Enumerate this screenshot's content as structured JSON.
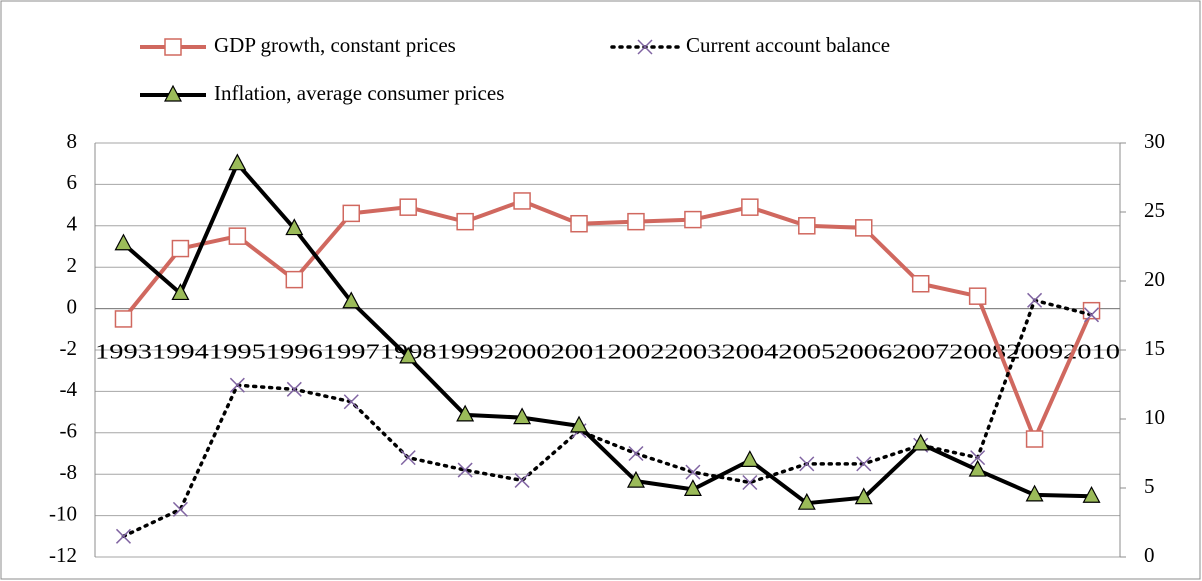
{
  "chart_data": {
    "type": "line",
    "categories": [
      "1993",
      "1994",
      "1995",
      "1996",
      "1997",
      "1998",
      "1999",
      "2000",
      "2001",
      "2002",
      "2003",
      "2004",
      "2005",
      "2006",
      "2007",
      "2008",
      "2009",
      "2010"
    ],
    "series": [
      {
        "name": "GDP growth, constant prices",
        "color": "#d0685f",
        "values": [
          -0.5,
          2.9,
          3.5,
          1.4,
          4.6,
          4.9,
          4.2,
          5.2,
          4.1,
          4.2,
          4.3,
          4.9,
          4.0,
          3.9,
          1.2,
          0.6,
          -6.3,
          -0.1
        ]
      },
      {
        "name": "Current account balance",
        "color": "#8064a2",
        "values": [
          -11.0,
          -9.7,
          -3.7,
          -3.9,
          -4.5,
          -7.2,
          -7.8,
          -8.3,
          -5.9,
          -7.0,
          -7.9,
          -8.4,
          -7.5,
          -7.5,
          -6.6,
          -7.2,
          0.4,
          -0.3
        ]
      },
      {
        "name": "Inflation, average consumer prices",
        "color": "#000000",
        "axis": "y2",
        "values": [
          22.7,
          19.1,
          28.5,
          23.8,
          18.5,
          14.5,
          10.3,
          10.1,
          9.5,
          5.5,
          4.9,
          7.0,
          3.9,
          4.3,
          8.2,
          6.3,
          4.5,
          4.4
        ]
      }
    ],
    "ylim": [
      -12,
      8
    ],
    "yticks": [
      -12,
      -10,
      -8,
      -6,
      -4,
      -2,
      0,
      2,
      4,
      6,
      8
    ],
    "y2lim": [
      0,
      30
    ],
    "y2ticks": [
      0,
      5,
      10,
      15,
      20,
      25,
      30
    ],
    "grid": true,
    "legend": "top"
  }
}
